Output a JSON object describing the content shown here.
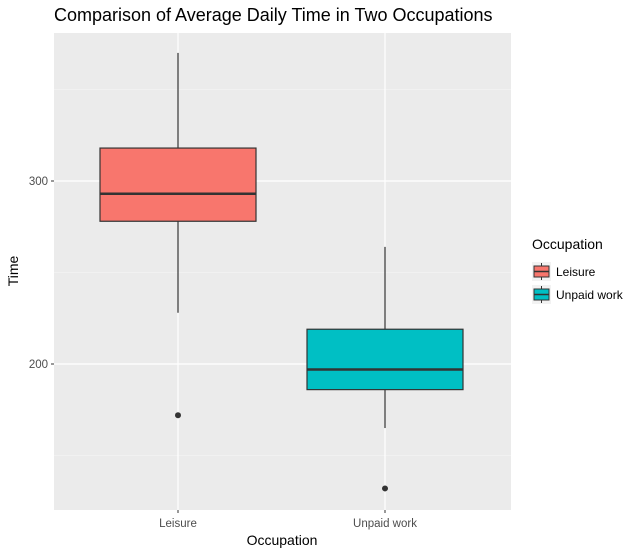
{
  "chart_data": {
    "type": "box",
    "title": "Comparison of Average Daily Time in Two Occupations",
    "xlabel": "Occupation",
    "ylabel": "Time",
    "ylim": [
      122,
      385
    ],
    "y_ticks": [
      200,
      300
    ],
    "y_minor_ticks": [
      150,
      250,
      350
    ],
    "grid": true,
    "legend": {
      "title": "Occupation",
      "position": "right"
    },
    "categories": [
      "Leisure",
      "Unpaid work"
    ],
    "colors": {
      "Leisure": "#f8766d",
      "Unpaid work": "#00bfc4"
    },
    "boxes": [
      {
        "category": "Leisure",
        "whisker_low": 228,
        "q1": 278,
        "median": 293,
        "q3": 318,
        "whisker_high": 370,
        "outliers": [
          172
        ]
      },
      {
        "category": "Unpaid work",
        "whisker_low": 165,
        "q1": 186,
        "median": 197,
        "q3": 219,
        "whisker_high": 264,
        "outliers": [
          132
        ]
      }
    ]
  }
}
